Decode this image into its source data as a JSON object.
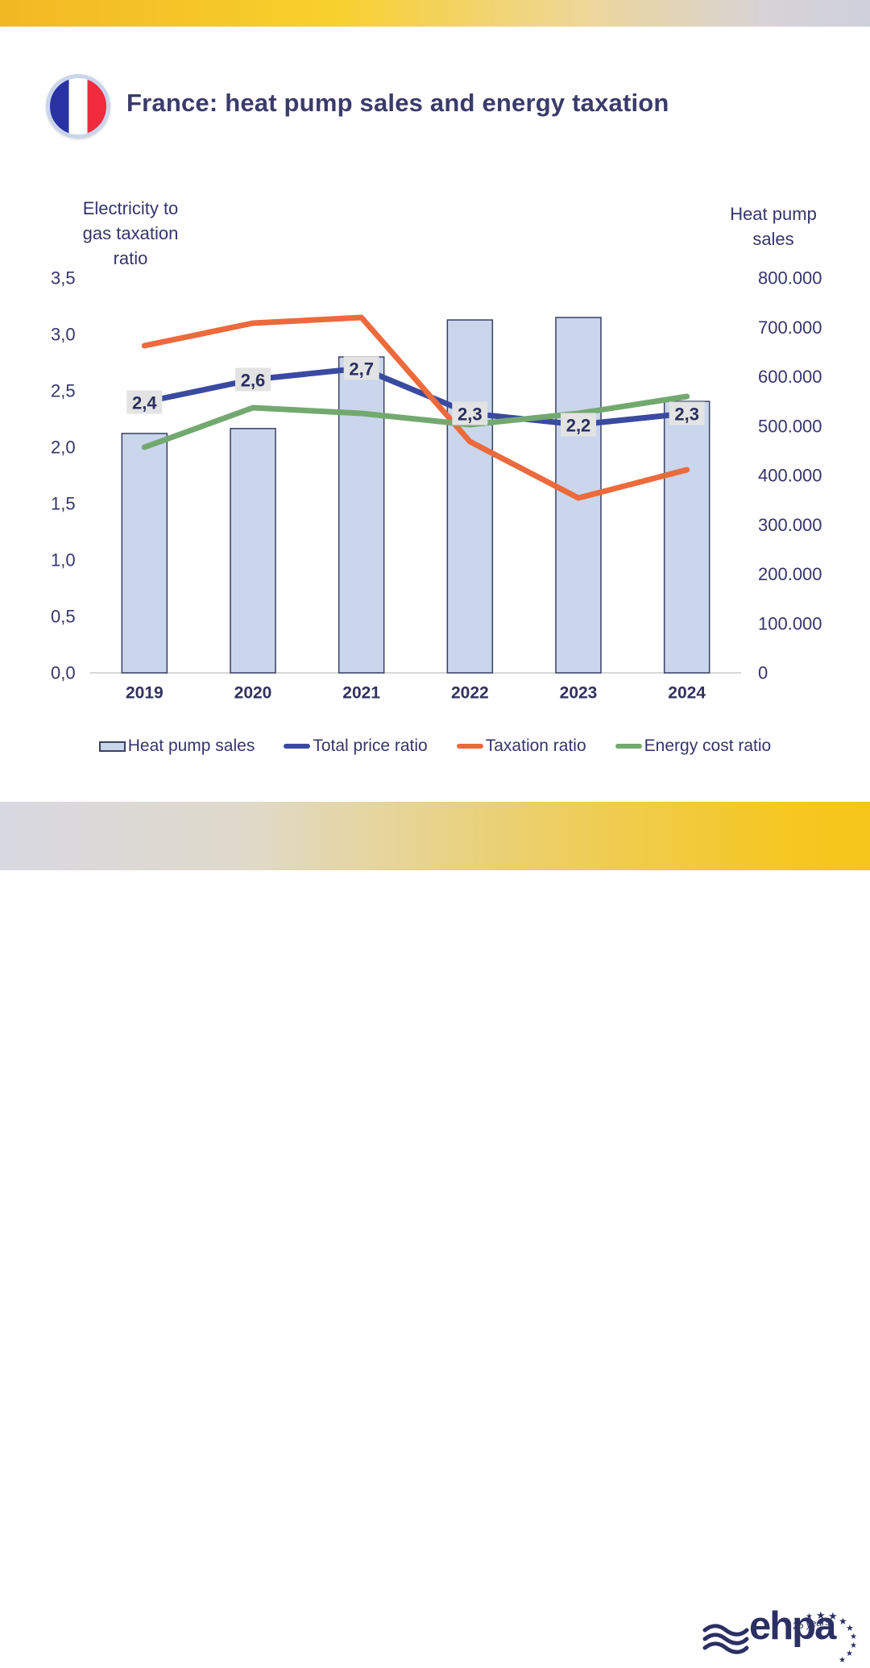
{
  "header": {
    "title": "France: heat pump sales and energy taxation"
  },
  "flag": {
    "country": "France"
  },
  "left_axis": {
    "title_lines": {
      "l1": "Electricity to",
      "l2": "gas taxation",
      "l3": "ratio"
    },
    "tick_labels": [
      "3,5",
      "3,0",
      "2,5",
      "2,0",
      "1,5",
      "1,0",
      "0,5",
      "0,0"
    ]
  },
  "right_axis": {
    "title_lines": {
      "l1": "Heat pump",
      "l2": "sales"
    },
    "tick_labels": [
      "800.000",
      "700.000",
      "600.000",
      "500.000",
      "400.000",
      "300.000",
      "200.000",
      "100.000",
      "0"
    ]
  },
  "chart_data": {
    "type": "combo-bar-line",
    "categories": [
      "2019",
      "2020",
      "2021",
      "2022",
      "2023",
      "2024"
    ],
    "left_axis_range": [
      0,
      3.5
    ],
    "right_axis_range": [
      0,
      800000
    ],
    "gridlines": false,
    "bar_series": {
      "name": "Heat pump sales",
      "axis": "right",
      "fill": "#C9D6EC",
      "stroke": "#3A4161",
      "values": [
        485000,
        495000,
        640000,
        715000,
        720000,
        550000
      ]
    },
    "line_series": [
      {
        "name": "Total price ratio",
        "axis": "left",
        "color": "#3A4AA1",
        "values": [
          2.4,
          2.6,
          2.7,
          2.3,
          2.2,
          2.3
        ],
        "point_labels": [
          "2,4",
          "2,6",
          "2,7",
          "2,3",
          "2,2",
          "2,3"
        ],
        "label_bg": "#E3E3E3",
        "label_color": "#2B2F5E"
      },
      {
        "name": "Taxation ratio",
        "axis": "left",
        "color": "#EC6A3C",
        "values": [
          2.9,
          3.1,
          3.15,
          2.05,
          1.55,
          1.8
        ]
      },
      {
        "name": "Energy cost ratio",
        "axis": "left",
        "color": "#73A96F",
        "values": [
          2.0,
          2.35,
          2.3,
          2.2,
          2.3,
          2.45
        ]
      }
    ]
  },
  "legend": {
    "items": [
      {
        "label": "Heat pump sales",
        "swatch": "bar",
        "color": "#C9D6EC"
      },
      {
        "label": "Total price ratio",
        "swatch": "line",
        "color": "#3A4AA1"
      },
      {
        "label": "Taxation ratio",
        "swatch": "line",
        "color": "#EC6A3C"
      },
      {
        "label": "Energy cost ratio",
        "swatch": "line",
        "color": "#73A96F"
      }
    ]
  },
  "footer": {
    "logo_text": "ehpa",
    "logo_tagline": "25 years"
  }
}
